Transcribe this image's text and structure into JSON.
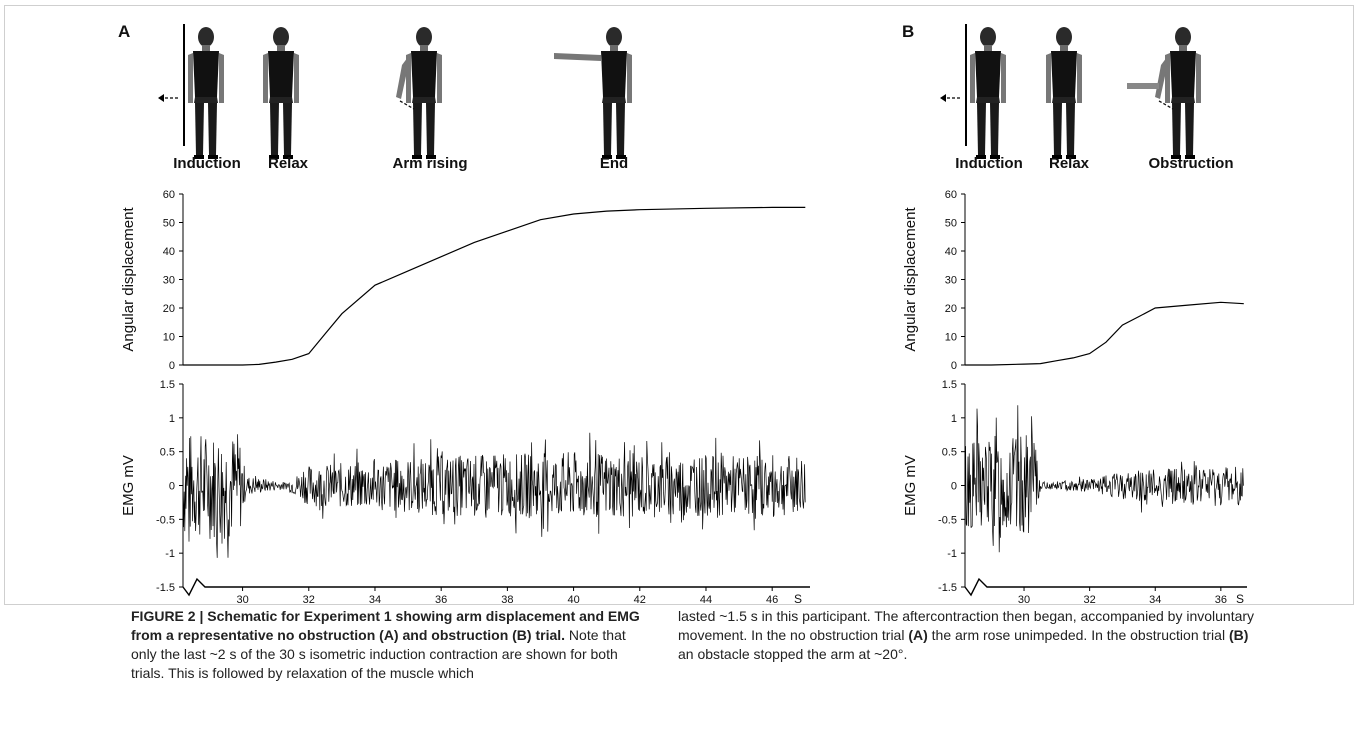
{
  "panelA": {
    "letter": "A",
    "figure_labels": [
      "Induction",
      "Relax",
      "Arm rising",
      "End"
    ],
    "angle_axis_label": "Angular displacement",
    "emg_axis_label": "EMG mV",
    "angle_ticks": [
      "0",
      "10",
      "20",
      "30",
      "40",
      "50",
      "60"
    ],
    "emg_ticks": [
      "-1.5",
      "-1",
      "-0.5",
      "0",
      "0.5",
      "1",
      "1.5"
    ],
    "x_ticks": [
      "30",
      "32",
      "34",
      "36",
      "38",
      "40",
      "42",
      "44",
      "46"
    ],
    "x_unit": "S"
  },
  "panelB": {
    "letter": "B",
    "figure_labels": [
      "Induction",
      "Relax",
      "Obstruction"
    ],
    "angle_axis_label": "Angular displacement",
    "emg_axis_label": "EMG mV",
    "angle_ticks": [
      "0",
      "10",
      "20",
      "30",
      "40",
      "50",
      "60"
    ],
    "emg_ticks": [
      "-1.5",
      "-1",
      "-0.5",
      "0",
      "0.5",
      "1",
      "1.5"
    ],
    "x_ticks": [
      "30",
      "32",
      "34",
      "36"
    ],
    "x_unit": "S"
  },
  "chart_data": [
    {
      "type": "line",
      "panel": "A",
      "ylabel": "Angular displacement",
      "ylim": [
        0,
        60
      ],
      "x": [
        28.2,
        29,
        30,
        30.5,
        31,
        31.5,
        32,
        32.5,
        33,
        34,
        35,
        36,
        37,
        38,
        39,
        40,
        41,
        42,
        44,
        46,
        47
      ],
      "y": [
        0,
        0,
        0,
        0.2,
        1,
        2,
        4,
        11,
        18,
        28,
        33,
        38,
        43,
        47,
        51,
        53,
        54,
        54.5,
        55,
        55.3,
        55.3
      ]
    },
    {
      "type": "line",
      "panel": "A",
      "ylabel": "EMG mV",
      "xlabel": "S",
      "ylim": [
        -1.5,
        1.5
      ],
      "x": [
        28.2,
        29.9,
        30.1,
        31.3,
        32,
        36,
        40,
        44,
        47
      ],
      "y_amplitude": [
        0.8,
        0.8,
        0.15,
        0.05,
        0.3,
        0.45,
        0.5,
        0.45,
        0.45
      ]
    },
    {
      "type": "line",
      "panel": "B",
      "ylabel": "Angular displacement",
      "ylim": [
        0,
        60
      ],
      "x": [
        28.2,
        29,
        30,
        30.5,
        31,
        31.5,
        32,
        32.5,
        33,
        33.5,
        34,
        35,
        36,
        36.7
      ],
      "y": [
        0,
        0,
        0.3,
        0.5,
        1.5,
        2.5,
        4,
        8,
        14,
        17,
        20,
        21,
        22,
        21.5
      ]
    },
    {
      "type": "line",
      "panel": "B",
      "ylabel": "EMG mV",
      "xlabel": "S",
      "ylim": [
        -1.5,
        1.5
      ],
      "x": [
        28.2,
        30.3,
        30.5,
        32,
        33.5,
        35,
        36.7
      ],
      "y_amplitude": [
        0.75,
        0.75,
        0.05,
        0.1,
        0.25,
        0.3,
        0.3
      ]
    }
  ],
  "caption": {
    "left_bold": "FIGURE 2 | Schematic for Experiment 1 showing arm displacement and EMG from a representative no obstruction (A) and obstruction (B) trial.",
    "left_text": " Note that only the last ~2 s of the 30 s isometric induction contraction are shown for both trials. This is followed by relaxation of the muscle which",
    "right_1": "lasted ~1.5 s in this participant. The aftercontraction then began, accompanied by involuntary movement. In the no obstruction trial ",
    "right_b1": "(A)",
    "right_2": " the arm rose unimpeded. In the obstruction trial ",
    "right_b2": "(B)",
    "right_3": " an obstacle stopped the arm at ~20°."
  }
}
